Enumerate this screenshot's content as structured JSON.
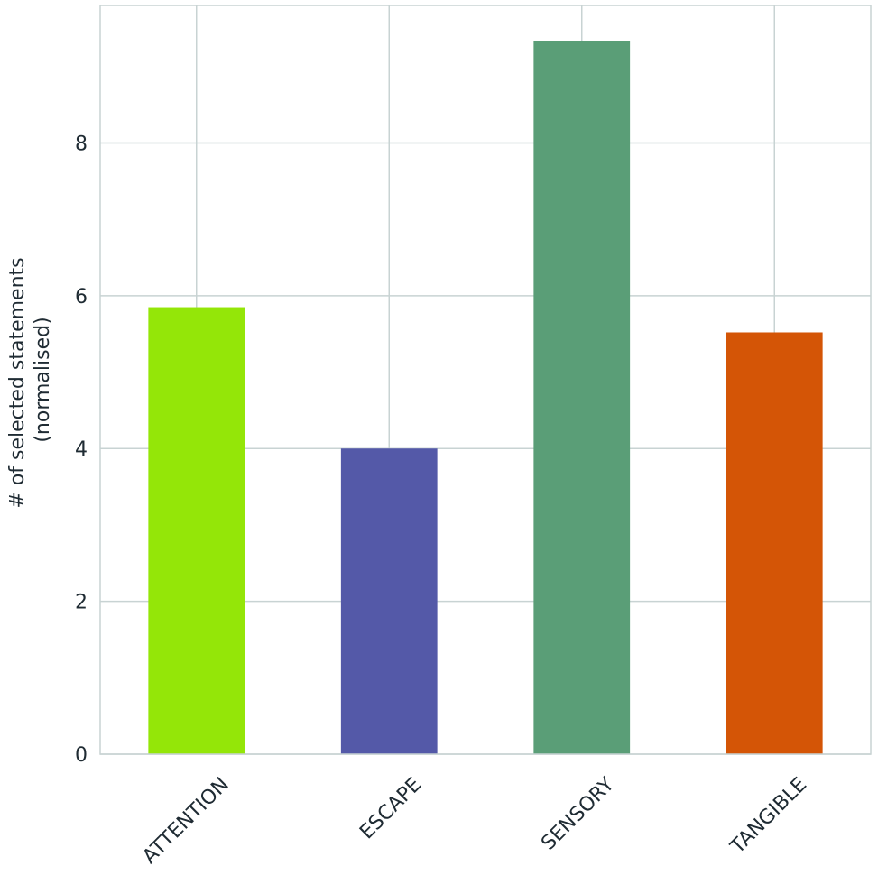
{
  "chart_data": {
    "type": "bar",
    "title": "",
    "xlabel": "",
    "ylabel_lines": [
      "# of selected statements",
      "(normalised)"
    ],
    "categories": [
      "ATTENTION",
      "ESCAPE",
      "SENSORY",
      "TANGIBLE"
    ],
    "values": [
      5.85,
      4.0,
      9.33,
      5.52
    ],
    "colors": [
      "#94e608",
      "#5459a8",
      "#5a9e77",
      "#d45506"
    ],
    "ylim": [
      0,
      9.8
    ],
    "yticks": [
      0,
      2,
      4,
      6,
      8
    ],
    "grid": true,
    "legend": "none"
  }
}
